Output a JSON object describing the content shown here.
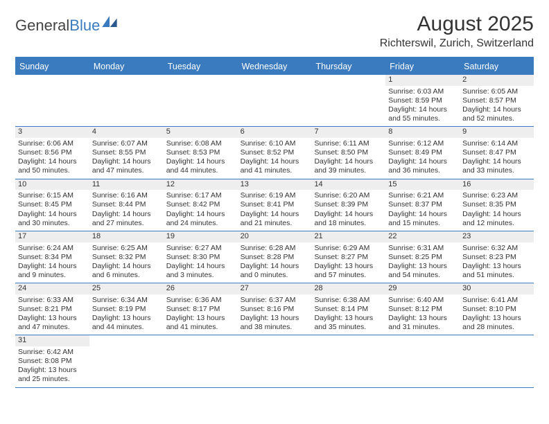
{
  "logo": {
    "text1": "General",
    "text2": "Blue"
  },
  "title": "August 2025",
  "location": "Richterswil, Zurich, Switzerland",
  "colors": {
    "header_bg": "#3a7bbf",
    "header_text": "#ffffff",
    "date_bar_bg": "#eeeeee",
    "border": "#3a7bbf",
    "text": "#333333",
    "background": "#ffffff"
  },
  "typography": {
    "title_fontsize": 30,
    "location_fontsize": 16,
    "dayheader_fontsize": 12.5,
    "cell_fontsize": 10.5
  },
  "day_names": [
    "Sunday",
    "Monday",
    "Tuesday",
    "Wednesday",
    "Thursday",
    "Friday",
    "Saturday"
  ],
  "weeks": [
    [
      null,
      null,
      null,
      null,
      null,
      {
        "date": "1",
        "sunrise": "Sunrise: 6:03 AM",
        "sunset": "Sunset: 8:59 PM",
        "daylight": "Daylight: 14 hours and 55 minutes."
      },
      {
        "date": "2",
        "sunrise": "Sunrise: 6:05 AM",
        "sunset": "Sunset: 8:57 PM",
        "daylight": "Daylight: 14 hours and 52 minutes."
      }
    ],
    [
      {
        "date": "3",
        "sunrise": "Sunrise: 6:06 AM",
        "sunset": "Sunset: 8:56 PM",
        "daylight": "Daylight: 14 hours and 50 minutes."
      },
      {
        "date": "4",
        "sunrise": "Sunrise: 6:07 AM",
        "sunset": "Sunset: 8:55 PM",
        "daylight": "Daylight: 14 hours and 47 minutes."
      },
      {
        "date": "5",
        "sunrise": "Sunrise: 6:08 AM",
        "sunset": "Sunset: 8:53 PM",
        "daylight": "Daylight: 14 hours and 44 minutes."
      },
      {
        "date": "6",
        "sunrise": "Sunrise: 6:10 AM",
        "sunset": "Sunset: 8:52 PM",
        "daylight": "Daylight: 14 hours and 41 minutes."
      },
      {
        "date": "7",
        "sunrise": "Sunrise: 6:11 AM",
        "sunset": "Sunset: 8:50 PM",
        "daylight": "Daylight: 14 hours and 39 minutes."
      },
      {
        "date": "8",
        "sunrise": "Sunrise: 6:12 AM",
        "sunset": "Sunset: 8:49 PM",
        "daylight": "Daylight: 14 hours and 36 minutes."
      },
      {
        "date": "9",
        "sunrise": "Sunrise: 6:14 AM",
        "sunset": "Sunset: 8:47 PM",
        "daylight": "Daylight: 14 hours and 33 minutes."
      }
    ],
    [
      {
        "date": "10",
        "sunrise": "Sunrise: 6:15 AM",
        "sunset": "Sunset: 8:45 PM",
        "daylight": "Daylight: 14 hours and 30 minutes."
      },
      {
        "date": "11",
        "sunrise": "Sunrise: 6:16 AM",
        "sunset": "Sunset: 8:44 PM",
        "daylight": "Daylight: 14 hours and 27 minutes."
      },
      {
        "date": "12",
        "sunrise": "Sunrise: 6:17 AM",
        "sunset": "Sunset: 8:42 PM",
        "daylight": "Daylight: 14 hours and 24 minutes."
      },
      {
        "date": "13",
        "sunrise": "Sunrise: 6:19 AM",
        "sunset": "Sunset: 8:41 PM",
        "daylight": "Daylight: 14 hours and 21 minutes."
      },
      {
        "date": "14",
        "sunrise": "Sunrise: 6:20 AM",
        "sunset": "Sunset: 8:39 PM",
        "daylight": "Daylight: 14 hours and 18 minutes."
      },
      {
        "date": "15",
        "sunrise": "Sunrise: 6:21 AM",
        "sunset": "Sunset: 8:37 PM",
        "daylight": "Daylight: 14 hours and 15 minutes."
      },
      {
        "date": "16",
        "sunrise": "Sunrise: 6:23 AM",
        "sunset": "Sunset: 8:35 PM",
        "daylight": "Daylight: 14 hours and 12 minutes."
      }
    ],
    [
      {
        "date": "17",
        "sunrise": "Sunrise: 6:24 AM",
        "sunset": "Sunset: 8:34 PM",
        "daylight": "Daylight: 14 hours and 9 minutes."
      },
      {
        "date": "18",
        "sunrise": "Sunrise: 6:25 AM",
        "sunset": "Sunset: 8:32 PM",
        "daylight": "Daylight: 14 hours and 6 minutes."
      },
      {
        "date": "19",
        "sunrise": "Sunrise: 6:27 AM",
        "sunset": "Sunset: 8:30 PM",
        "daylight": "Daylight: 14 hours and 3 minutes."
      },
      {
        "date": "20",
        "sunrise": "Sunrise: 6:28 AM",
        "sunset": "Sunset: 8:28 PM",
        "daylight": "Daylight: 14 hours and 0 minutes."
      },
      {
        "date": "21",
        "sunrise": "Sunrise: 6:29 AM",
        "sunset": "Sunset: 8:27 PM",
        "daylight": "Daylight: 13 hours and 57 minutes."
      },
      {
        "date": "22",
        "sunrise": "Sunrise: 6:31 AM",
        "sunset": "Sunset: 8:25 PM",
        "daylight": "Daylight: 13 hours and 54 minutes."
      },
      {
        "date": "23",
        "sunrise": "Sunrise: 6:32 AM",
        "sunset": "Sunset: 8:23 PM",
        "daylight": "Daylight: 13 hours and 51 minutes."
      }
    ],
    [
      {
        "date": "24",
        "sunrise": "Sunrise: 6:33 AM",
        "sunset": "Sunset: 8:21 PM",
        "daylight": "Daylight: 13 hours and 47 minutes."
      },
      {
        "date": "25",
        "sunrise": "Sunrise: 6:34 AM",
        "sunset": "Sunset: 8:19 PM",
        "daylight": "Daylight: 13 hours and 44 minutes."
      },
      {
        "date": "26",
        "sunrise": "Sunrise: 6:36 AM",
        "sunset": "Sunset: 8:17 PM",
        "daylight": "Daylight: 13 hours and 41 minutes."
      },
      {
        "date": "27",
        "sunrise": "Sunrise: 6:37 AM",
        "sunset": "Sunset: 8:16 PM",
        "daylight": "Daylight: 13 hours and 38 minutes."
      },
      {
        "date": "28",
        "sunrise": "Sunrise: 6:38 AM",
        "sunset": "Sunset: 8:14 PM",
        "daylight": "Daylight: 13 hours and 35 minutes."
      },
      {
        "date": "29",
        "sunrise": "Sunrise: 6:40 AM",
        "sunset": "Sunset: 8:12 PM",
        "daylight": "Daylight: 13 hours and 31 minutes."
      },
      {
        "date": "30",
        "sunrise": "Sunrise: 6:41 AM",
        "sunset": "Sunset: 8:10 PM",
        "daylight": "Daylight: 13 hours and 28 minutes."
      }
    ],
    [
      {
        "date": "31",
        "sunrise": "Sunrise: 6:42 AM",
        "sunset": "Sunset: 8:08 PM",
        "daylight": "Daylight: 13 hours and 25 minutes."
      },
      null,
      null,
      null,
      null,
      null,
      null
    ]
  ]
}
